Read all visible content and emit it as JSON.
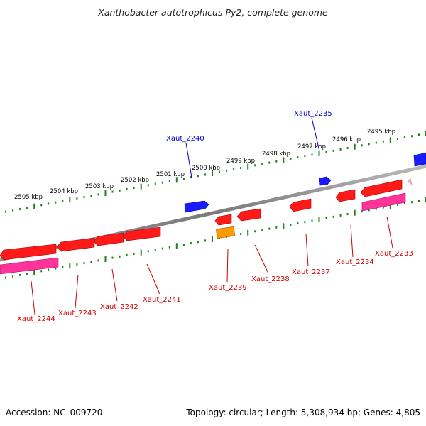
{
  "title": "Xanthobacter autotrophicus Py2, complete genome",
  "footer": {
    "accession": "Accession: NC_009720",
    "stats": "Topology: circular; Length: 5,308,934 bp; Genes: 4,805"
  },
  "colors": {
    "backbone": "#8a8a8a",
    "tick_major": "#1a7a1a",
    "tick_minor": "#2e8b2e",
    "forward_gene": "#0000ff",
    "reverse_gene": "#ff0000",
    "reverse_other": "#ff8c00",
    "reverse_track2": "#ff3399",
    "pink_small": "#ffaacc",
    "label_forward": "#0000cc",
    "label_reverse": "#cc0000"
  },
  "scale_labels": [
    "2495 kbp",
    "2496 kbp",
    "2497 kbp",
    "2498 kbp",
    "2499 kbp",
    "2500 kbp",
    "2501 kbp",
    "2502 kbp",
    "2503 kbp",
    "2504 kbp",
    "2505 kbp"
  ],
  "forward_labels": [
    "Xaut_2235",
    "Xaut_2240"
  ],
  "reverse_labels": [
    "Xaut_2233",
    "Xaut_2234",
    "Xaut_2237",
    "Xaut_2238",
    "Xaut_2239",
    "Xaut_2241",
    "Xaut_2242",
    "Xaut_2243",
    "Xaut_2244"
  ]
}
